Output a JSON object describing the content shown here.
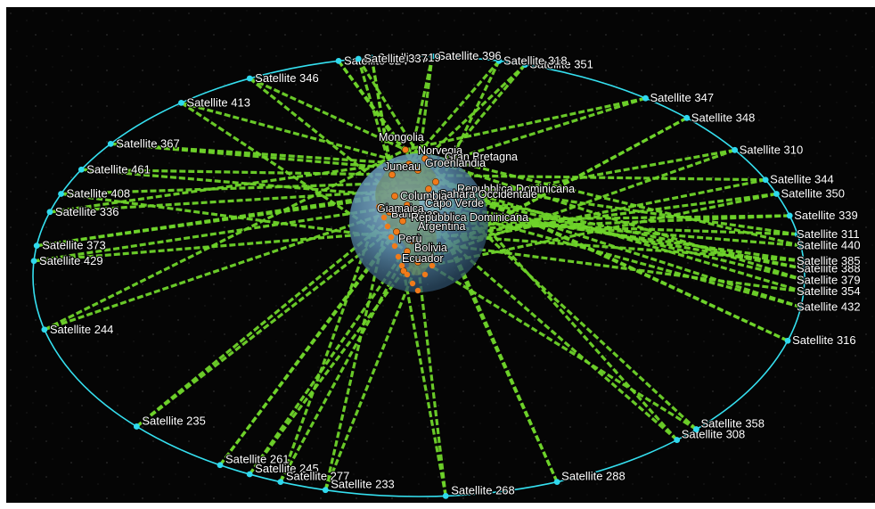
{
  "colors": {
    "background": "#050505",
    "orbit": "#35e0f0",
    "satellite_dot": "#2fd9ee",
    "link": "#6fd42a",
    "ground_station": "#f07a1a",
    "earth": "#5e8fb0"
  },
  "satellites": [
    {
      "label": "Satellite 324",
      "t": 258
    },
    {
      "label": "Satellite 346",
      "t": 244
    },
    {
      "label": "Satellite 413",
      "t": 232
    },
    {
      "label": "Satellite 367",
      "t": 217
    },
    {
      "label": "Satellite 461",
      "t": 209
    },
    {
      "label": "Satellite 408",
      "t": 202
    },
    {
      "label": "Satellite 336",
      "t": 197
    },
    {
      "label": "Satellite 373",
      "t": 188
    },
    {
      "label": "Satellite 429",
      "t": 184
    },
    {
      "label": "Satellite 244",
      "t": 166
    },
    {
      "label": "Satellite 235",
      "t": 137
    },
    {
      "label": "Satellite 261",
      "t": 121
    },
    {
      "label": "Satellite 245",
      "t": 116
    },
    {
      "label": "Satellite 277",
      "t": 111
    },
    {
      "label": "Satellite 233",
      "t": 104
    },
    {
      "label": "Satellite 268",
      "t": 86
    },
    {
      "label": "Satellite 288",
      "t": 69
    },
    {
      "label": "Satellite 308",
      "t": 48
    },
    {
      "label": "Satellite 358",
      "t": 44
    },
    {
      "label": "Satellite 316",
      "t": 17
    },
    {
      "label": "Satellite 432",
      "t": 8
    },
    {
      "label": "Satellite 354",
      "t": 4
    },
    {
      "label": "Satellite 379",
      "t": 1
    },
    {
      "label": "Satellite 388",
      "t": 358
    },
    {
      "label": "Satellite 385",
      "t": 356
    },
    {
      "label": "Satellite 440",
      "t": 352
    },
    {
      "label": "Satellite 311",
      "t": 349
    },
    {
      "label": "Satellite 339",
      "t": 344
    },
    {
      "label": "Satellite 350",
      "t": 338
    },
    {
      "label": "Satellite 344",
      "t": 334
    },
    {
      "label": "Satellite 310",
      "t": 325
    },
    {
      "label": "Satellite 348",
      "t": 314
    },
    {
      "label": "Satellite 347",
      "t": 306
    },
    {
      "label": "Satellite 351",
      "t": 286
    },
    {
      "label": "Satellite 318",
      "t": 282
    },
    {
      "label": "Satellite 396",
      "t": 272
    },
    {
      "label": "Satellite 319",
      "t": 263
    },
    {
      "label": "Satellite 337",
      "t": 261
    }
  ],
  "ground_stations": [
    {
      "label": "Mongolia"
    },
    {
      "label": "Norvegia"
    },
    {
      "label": "Gran Bretagna"
    },
    {
      "label": "Groenlandia"
    },
    {
      "label": "Juneau"
    },
    {
      "label": "Repubblica Dominicana"
    },
    {
      "label": "Sahara Occidentale"
    },
    {
      "label": "Columbia"
    },
    {
      "label": "Capo Verde"
    },
    {
      "label": "Bahamas"
    },
    {
      "label": "Repubblica Dominicana"
    },
    {
      "label": "Giamaica"
    },
    {
      "label": "Argentina"
    },
    {
      "label": "Perù"
    },
    {
      "label": "Bolivia"
    },
    {
      "label": "Ecuador"
    }
  ]
}
